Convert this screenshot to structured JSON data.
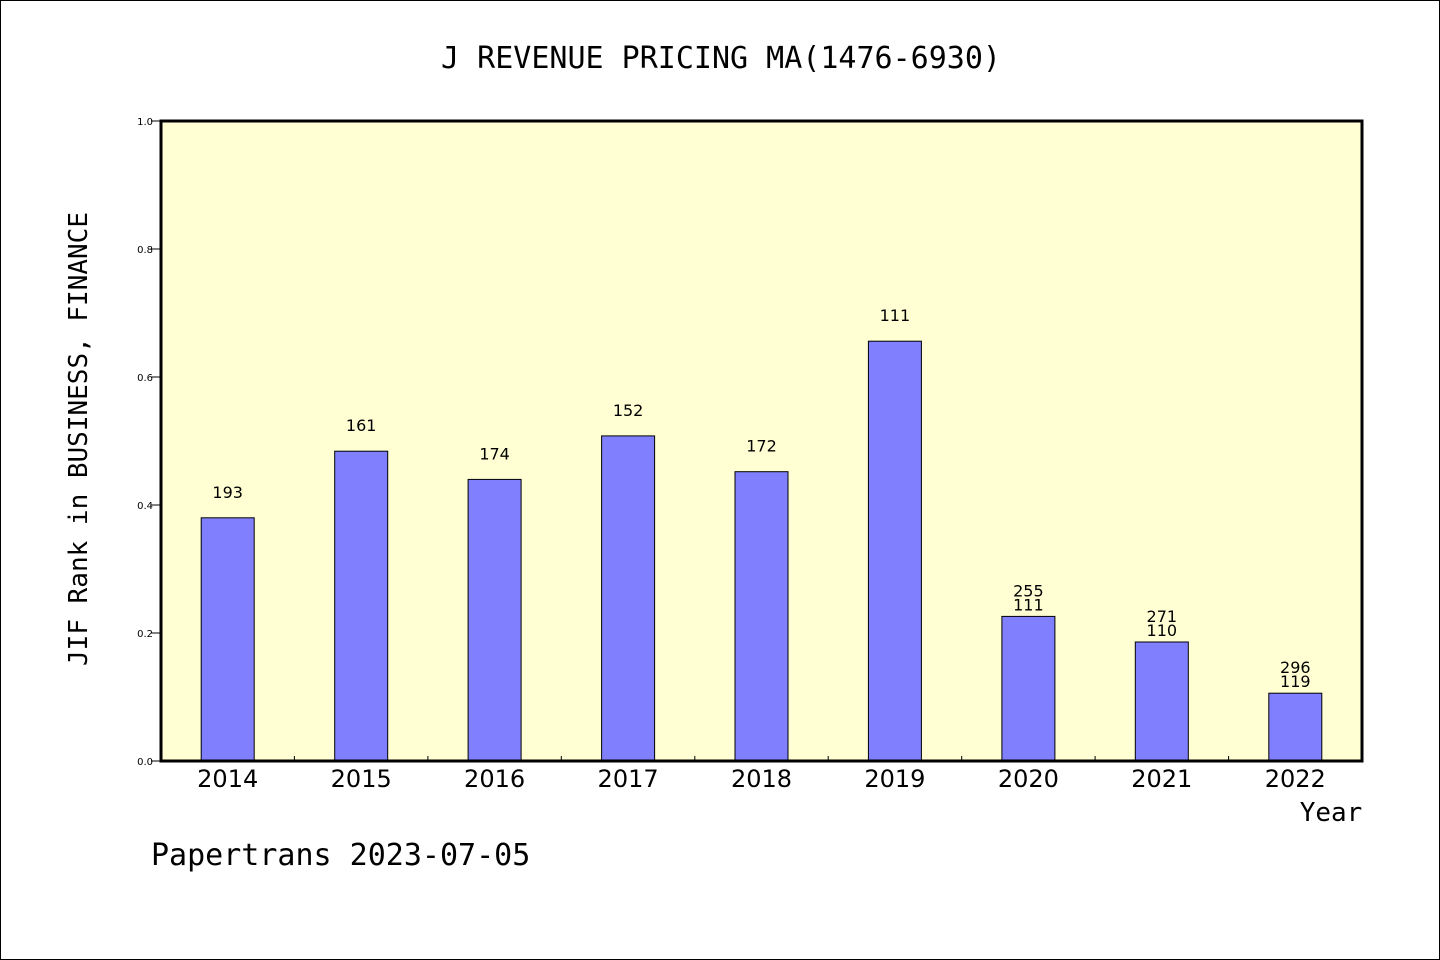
{
  "footer": {
    "text": "Papertrans 2023-07-05"
  },
  "colors": {
    "plot_background": "#ffffd3",
    "bar_fill": "#8080ff",
    "bar_stroke": "#000000",
    "axis": "#000000"
  },
  "chart_data": {
    "type": "bar",
    "title": "J REVENUE PRICING MA(1476-6930)",
    "xlabel": "Year",
    "ylabel": "JIF Rank in BUSINESS, FINANCE",
    "ylim": [
      0.0,
      1.0
    ],
    "y_ticks": [
      "0.0",
      "0.2",
      "0.4",
      "0.6",
      "0.8",
      "1.0"
    ],
    "categories": [
      "2014",
      "2015",
      "2016",
      "2017",
      "2018",
      "2019",
      "2020",
      "2021",
      "2022"
    ],
    "values": [
      0.38,
      0.484,
      0.44,
      0.508,
      0.452,
      0.656,
      0.226,
      0.186,
      0.106
    ],
    "bar_labels": [
      [
        "193"
      ],
      [
        "161"
      ],
      [
        "174"
      ],
      [
        "152"
      ],
      [
        "172"
      ],
      [
        "111"
      ],
      [
        "255",
        "111"
      ],
      [
        "271",
        "110"
      ],
      [
        "296",
        "119"
      ]
    ],
    "grid": false,
    "legend": "none"
  }
}
